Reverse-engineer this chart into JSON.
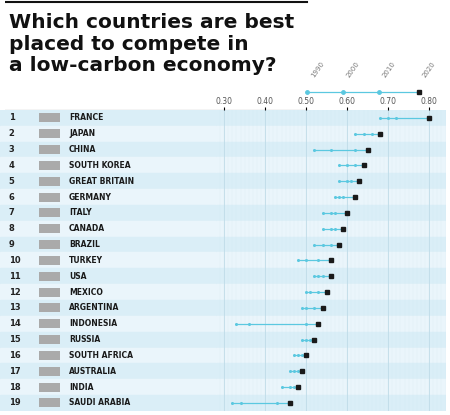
{
  "title_lines": [
    "Which countries are best",
    "placed to compete in",
    "a low-carbon economy?"
  ],
  "countries": [
    "FRANCE",
    "JAPAN",
    "CHINA",
    "SOUTH KOREA",
    "GREAT BRITAIN",
    "GERMANY",
    "ITALY",
    "CANADA",
    "BRAZIL",
    "TURKEY",
    "USA",
    "MEXICO",
    "ARGENTINA",
    "INDONESIA",
    "RUSSIA",
    "SOUTH AFRICA",
    "AUSTRALIA",
    "INDIA",
    "SAUDI ARABIA"
  ],
  "ranks": [
    1,
    2,
    3,
    4,
    5,
    6,
    7,
    8,
    9,
    10,
    11,
    12,
    13,
    14,
    15,
    16,
    17,
    18,
    19
  ],
  "series_labels": [
    "1990",
    "2000",
    "2010",
    "2020"
  ],
  "data": {
    "FRANCE": [
      0.68,
      0.7,
      0.72,
      0.8
    ],
    "JAPAN": [
      0.62,
      0.64,
      0.66,
      0.68
    ],
    "CHINA": [
      0.52,
      0.56,
      0.62,
      0.65
    ],
    "SOUTH KOREA": [
      0.58,
      0.6,
      0.62,
      0.64
    ],
    "GREAT BRITAIN": [
      0.58,
      0.6,
      0.61,
      0.63
    ],
    "GERMANY": [
      0.57,
      0.58,
      0.59,
      0.62
    ],
    "ITALY": [
      0.54,
      0.56,
      0.57,
      0.6
    ],
    "CANADA": [
      0.54,
      0.56,
      0.57,
      0.59
    ],
    "BRAZIL": [
      0.52,
      0.54,
      0.56,
      0.58
    ],
    "TURKEY": [
      0.48,
      0.5,
      0.53,
      0.56
    ],
    "USA": [
      0.52,
      0.53,
      0.54,
      0.56
    ],
    "MEXICO": [
      0.5,
      0.51,
      0.53,
      0.55
    ],
    "ARGENTINA": [
      0.49,
      0.5,
      0.52,
      0.54
    ],
    "INDONESIA": [
      0.33,
      0.36,
      0.5,
      0.53
    ],
    "RUSSIA": [
      0.49,
      0.5,
      0.51,
      0.52
    ],
    "SOUTH AFRICA": [
      0.47,
      0.48,
      0.49,
      0.5
    ],
    "AUSTRALIA": [
      0.46,
      0.47,
      0.48,
      0.49
    ],
    "INDIA": [
      0.44,
      0.46,
      0.47,
      0.48
    ],
    "SAUDI ARABIA": [
      0.32,
      0.34,
      0.43,
      0.46
    ]
  },
  "xlim": [
    0.28,
    0.84
  ],
  "xticks": [
    0.3,
    0.4,
    0.5,
    0.6,
    0.7,
    0.8
  ],
  "xtick_labels": [
    "0.30",
    "0.40",
    "0.50",
    "0.60",
    "0.70",
    "0.80"
  ],
  "bg_color": "#ffffff",
  "row_odd_color": "#daeef7",
  "row_even_color": "#eaf5fb",
  "grid_major_color": "#c0dce8",
  "grid_minor_color": "#d0e8f0",
  "line_color": "#5bc8e0",
  "dot_open_color": "#5bc8e0",
  "dot_last_color": "#1a1a1a",
  "title_fontsize": 14.5,
  "country_fontsize": 5.5,
  "rank_fontsize": 6.0,
  "axis_tick_fontsize": 5.5,
  "legend_fontsize": 5.0
}
